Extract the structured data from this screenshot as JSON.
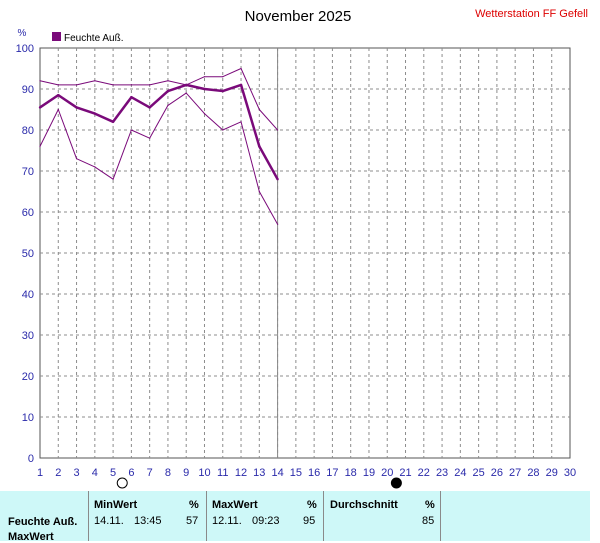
{
  "header": {
    "title": "November 2025",
    "station": "Wetterstation FF Gefell",
    "unit_label": "%"
  },
  "colors": {
    "series": "#7a0a7a",
    "station": "#dd0000",
    "axis_text": "#2a2aaa",
    "grid": "#8c8c8c",
    "stats_bg": "#cef8f8"
  },
  "chart_data": {
    "type": "line",
    "legend": "Feuchte Auß.",
    "legend_position": "top-left",
    "ylabel": "%",
    "xlim": [
      1,
      30
    ],
    "ylim": [
      0,
      100
    ],
    "y_ticks": [
      0,
      10,
      20,
      30,
      40,
      50,
      60,
      70,
      80,
      90,
      100
    ],
    "x_ticks": [
      1,
      2,
      3,
      4,
      5,
      6,
      7,
      8,
      9,
      10,
      11,
      12,
      13,
      14,
      15,
      16,
      17,
      18,
      19,
      20,
      21,
      22,
      23,
      24,
      25,
      26,
      27,
      28,
      29,
      30
    ],
    "grid": true,
    "moon_phases": [
      {
        "day": 5.5,
        "phase": "full"
      },
      {
        "day": 20.5,
        "phase": "new"
      }
    ],
    "series": [
      {
        "name": "Feuchte Auß.",
        "role": "mean",
        "x": [
          1,
          2,
          3,
          4,
          5,
          6,
          7,
          8,
          9,
          10,
          11,
          12,
          13,
          14
        ],
        "values": [
          85.5,
          88.5,
          85.5,
          84,
          82,
          88,
          85.5,
          89.5,
          91,
          90,
          89.5,
          91,
          76,
          68
        ]
      },
      {
        "role": "max",
        "x": [
          1,
          2,
          3,
          4,
          5,
          6,
          7,
          8,
          9,
          10,
          11,
          12,
          13,
          14
        ],
        "values": [
          92,
          91,
          91,
          92,
          91,
          91,
          91,
          92,
          91,
          93,
          93,
          95,
          85,
          80
        ]
      },
      {
        "role": "min",
        "x": [
          1,
          2,
          3,
          4,
          5,
          6,
          7,
          8,
          9,
          10,
          11,
          12,
          13,
          14
        ],
        "values": [
          76,
          85,
          73,
          71,
          68,
          80,
          78,
          86,
          89,
          84,
          80,
          82,
          65,
          57
        ]
      }
    ]
  },
  "stats": {
    "min_header": "MinWert",
    "max_header": "MaxWert",
    "avg_header": "Durchschnitt",
    "unit": "%",
    "row_label": "Feuchte Auß.",
    "row2_label": "MaxWert",
    "min_date": "14.11.",
    "min_time": "13:45",
    "min_value": "57",
    "max_date": "12.11.",
    "max_time": "09:23",
    "max_value": "95",
    "avg_value": "85"
  }
}
